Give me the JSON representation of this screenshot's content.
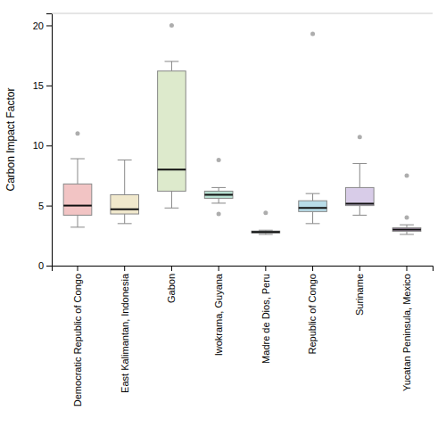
{
  "chart_data": {
    "type": "box",
    "ylabel": "Carbon Impact Factor",
    "categories": [
      "Democratic Republic of Congo",
      "East Kalimantan, Indonesia",
      "Gabon",
      "Iwokrama, Guyana",
      "Madre de Dios, Peru",
      "Republic of Congo",
      "Suriname",
      "Yucatan Peninsula, Mexico"
    ],
    "values": [
      {
        "whislo": 3.2,
        "q1": 4.2,
        "med": 5.0,
        "q3": 6.8,
        "whishi": 8.9,
        "fliers": [
          11.0
        ]
      },
      {
        "whislo": 3.5,
        "q1": 4.3,
        "med": 4.7,
        "q3": 5.9,
        "whishi": 8.8,
        "fliers": []
      },
      {
        "whislo": 4.8,
        "q1": 6.2,
        "med": 8.0,
        "q3": 16.2,
        "whishi": 17.0,
        "fliers": [
          20.0
        ]
      },
      {
        "whislo": 5.2,
        "q1": 5.6,
        "med": 5.9,
        "q3": 6.2,
        "whishi": 6.5,
        "fliers": [
          8.8,
          4.3
        ]
      },
      {
        "whislo": 2.6,
        "q1": 2.72,
        "med": 2.8,
        "q3": 2.88,
        "whishi": 2.95,
        "fliers": [
          4.4
        ]
      },
      {
        "whislo": 3.5,
        "q1": 4.5,
        "med": 4.8,
        "q3": 5.4,
        "whishi": 6.0,
        "fliers": [
          19.3
        ]
      },
      {
        "whislo": 4.2,
        "q1": 5.0,
        "med": 5.15,
        "q3": 6.5,
        "whishi": 8.5,
        "fliers": [
          10.7
        ]
      },
      {
        "whislo": 2.6,
        "q1": 2.85,
        "med": 3.0,
        "q3": 3.15,
        "whishi": 3.4,
        "fliers": [
          4.0,
          7.5
        ]
      }
    ],
    "colors": [
      "#f2c4c4",
      "#f0e8cc",
      "#ddeacc",
      "#b8e0d2",
      "#b8dada",
      "#b8dce8",
      "#d8cce8",
      "#d4bcd8"
    ],
    "ylim": [
      0,
      21
    ],
    "yticks": [
      0,
      5,
      10,
      15,
      20
    ]
  }
}
